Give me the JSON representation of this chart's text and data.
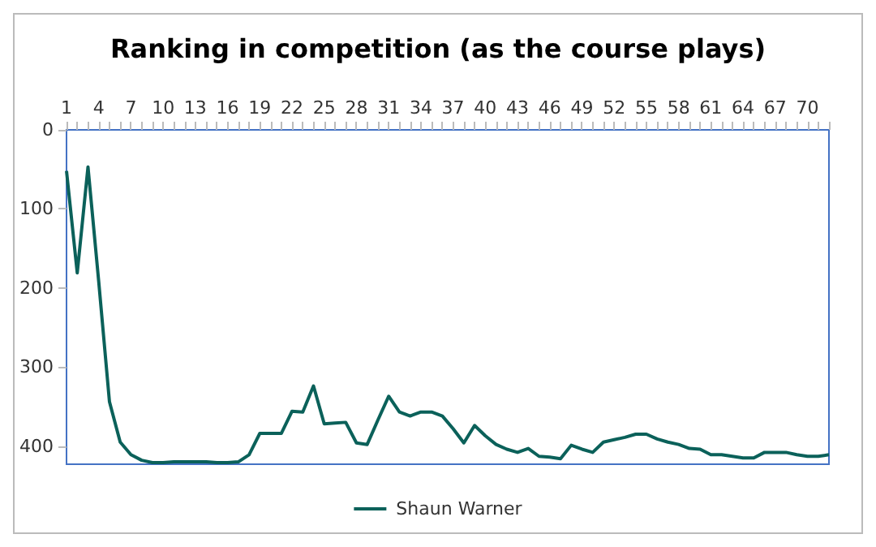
{
  "chart_data": {
    "type": "line",
    "title": "Ranking in competition (as the course plays)",
    "categories": [
      "1",
      null,
      null,
      "4",
      null,
      null,
      "7",
      null,
      null,
      "10",
      null,
      null,
      "13",
      null,
      null,
      "16",
      null,
      null,
      "19",
      null,
      null,
      "22",
      null,
      null,
      "25",
      null,
      null,
      "28",
      null,
      null,
      "31",
      null,
      null,
      "34",
      null,
      null,
      "37",
      null,
      null,
      "40",
      null,
      null,
      "43",
      null,
      null,
      "46",
      null,
      null,
      "49",
      null,
      null,
      "52",
      null,
      null,
      "55",
      null,
      null,
      "58",
      null,
      null,
      "61",
      null,
      null,
      "64",
      null,
      null,
      "67",
      null,
      null,
      "70",
      null,
      null
    ],
    "series": [
      {
        "name": "Shaun Warner",
        "color": "#0b615a",
        "values": [
          52,
          181,
          47,
          192,
          344,
          395,
          411,
          418,
          421,
          421,
          420,
          420,
          420,
          420,
          421,
          421,
          420,
          411,
          384,
          384,
          384,
          356,
          357,
          324,
          372,
          371,
          370,
          396,
          398,
          367,
          337,
          357,
          362,
          357,
          357,
          362,
          378,
          396,
          374,
          387,
          398,
          404,
          408,
          403,
          413,
          414,
          416,
          399,
          404,
          408,
          395,
          392,
          389,
          385,
          385,
          391,
          395,
          398,
          403,
          404,
          411,
          411,
          413,
          415,
          415,
          408,
          408,
          408,
          411,
          413,
          413,
          411
        ]
      }
    ],
    "ylim": [
      423,
      0
    ],
    "yticks": [
      0,
      100,
      200,
      300,
      400
    ],
    "grid": false,
    "legend": "bottom",
    "marker": "none",
    "line_style": "solid"
  }
}
